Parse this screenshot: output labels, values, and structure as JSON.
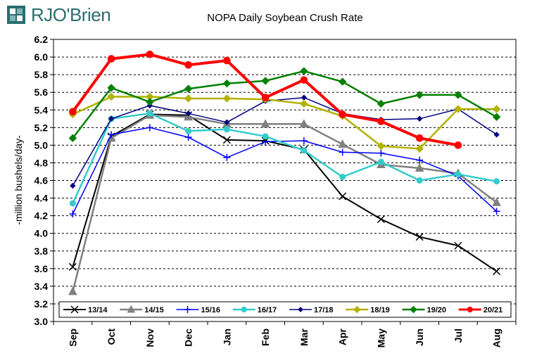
{
  "brand": {
    "logo_text": "RJO'Brien",
    "logo_color": "#2b6d6e"
  },
  "chart_data": {
    "type": "line",
    "title": "NOPA Daily Soybean Crush Rate",
    "xlabel": "",
    "ylabel": "-million bushels/day-",
    "ylim": [
      3.0,
      6.2
    ],
    "yticks": [
      "3.0",
      "3.2",
      "3.4",
      "3.6",
      "3.8",
      "4.0",
      "4.2",
      "4.4",
      "4.6",
      "4.8",
      "5.0",
      "5.2",
      "5.4",
      "5.6",
      "5.8",
      "6.0",
      "6.2"
    ],
    "categories": [
      "Sep",
      "Oct",
      "Nov",
      "Dec",
      "Jan",
      "Feb",
      "Mar",
      "Apr",
      "May",
      "Jun",
      "Jul",
      "Aug"
    ],
    "grid": "horizontal dashed",
    "legend_position": "bottom",
    "series": [
      {
        "name": "13/14",
        "color": "#000000",
        "marker": "x",
        "width": 2,
        "values": [
          3.62,
          5.1,
          5.35,
          5.34,
          5.06,
          5.05,
          4.95,
          4.42,
          4.16,
          3.96,
          3.86,
          3.57
        ]
      },
      {
        "name": "14/15",
        "color": "#808080",
        "marker": "triangle",
        "width": 2.5,
        "values": [
          3.34,
          5.08,
          5.34,
          5.32,
          5.24,
          5.24,
          5.24,
          5.01,
          4.78,
          4.74,
          4.68,
          4.35
        ]
      },
      {
        "name": "15/16",
        "color": "#0000ff",
        "marker": "plus",
        "width": 1.5,
        "values": [
          4.22,
          5.12,
          5.2,
          5.09,
          4.86,
          5.04,
          5.05,
          4.92,
          4.91,
          4.83,
          4.65,
          4.25
        ]
      },
      {
        "name": "16/17",
        "color": "#33cccc",
        "marker": "circle",
        "width": 2.5,
        "values": [
          4.34,
          5.3,
          5.36,
          5.16,
          5.18,
          5.1,
          4.94,
          4.64,
          4.81,
          4.6,
          4.67,
          4.59
        ]
      },
      {
        "name": "17/18",
        "color": "#000080",
        "marker": "diamond-small",
        "width": 1.5,
        "values": [
          4.54,
          5.3,
          5.45,
          5.36,
          5.26,
          5.5,
          5.54,
          5.36,
          5.29,
          5.3,
          5.41,
          5.12
        ]
      },
      {
        "name": "18/19",
        "color": "#b2b200",
        "marker": "diamond",
        "width": 2.5,
        "values": [
          5.35,
          5.55,
          5.55,
          5.53,
          5.53,
          5.52,
          5.47,
          5.33,
          4.99,
          4.96,
          5.41,
          5.41
        ]
      },
      {
        "name": "19/20",
        "color": "#008000",
        "marker": "diamond",
        "width": 2.5,
        "values": [
          5.08,
          5.65,
          5.49,
          5.64,
          5.7,
          5.73,
          5.84,
          5.72,
          5.47,
          5.57,
          5.57,
          5.32
        ]
      },
      {
        "name": "20/21",
        "color": "#ff0000",
        "marker": "circle",
        "width": 4,
        "values": [
          5.38,
          5.98,
          6.03,
          5.91,
          5.96,
          5.54,
          5.74,
          5.35,
          5.27,
          5.08,
          5.0,
          null
        ]
      }
    ]
  }
}
